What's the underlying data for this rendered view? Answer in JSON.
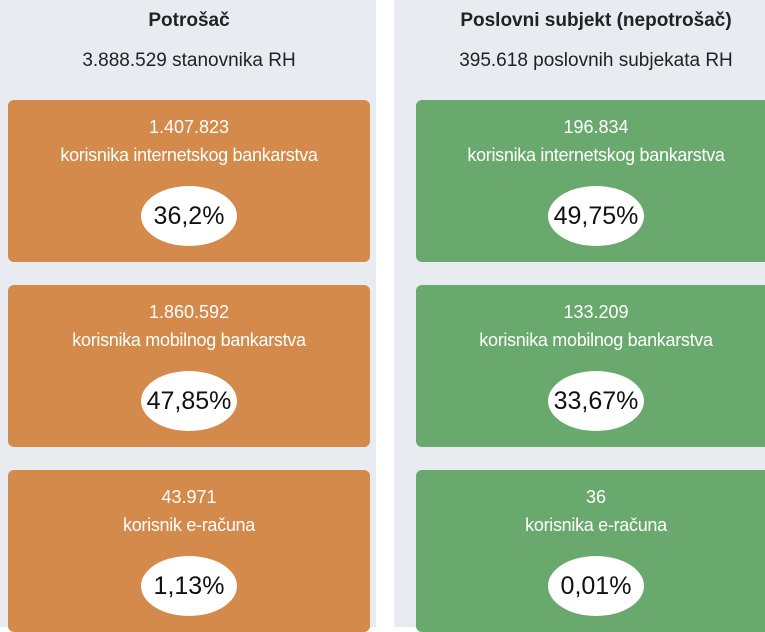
{
  "columns": [
    {
      "title": "Potrošač",
      "subtitle": "3.888.529 stanovnika RH",
      "cards": [
        {
          "count": "1.407.823",
          "label": "korisnika internetskog bankarstva",
          "percent": "36,2%"
        },
        {
          "count": "1.860.592",
          "label": "korisnika mobilnog bankarstva",
          "percent": "47,85%"
        },
        {
          "count": "43.971",
          "label": "korisnik e-računa",
          "percent": "1,13%"
        }
      ]
    },
    {
      "title": "Poslovni subjekt (nepotrošač)",
      "subtitle": "395.618 poslovnih subjekata RH",
      "cards": [
        {
          "count": "196.834",
          "label": "korisnika internetskog bankarstva",
          "percent": "49,75%"
        },
        {
          "count": "133.209",
          "label": "korisnika mobilnog bankarstva",
          "percent": "33,67%"
        },
        {
          "count": "36",
          "label": "korisnika e-računa",
          "percent": "0,01%"
        }
      ]
    }
  ]
}
